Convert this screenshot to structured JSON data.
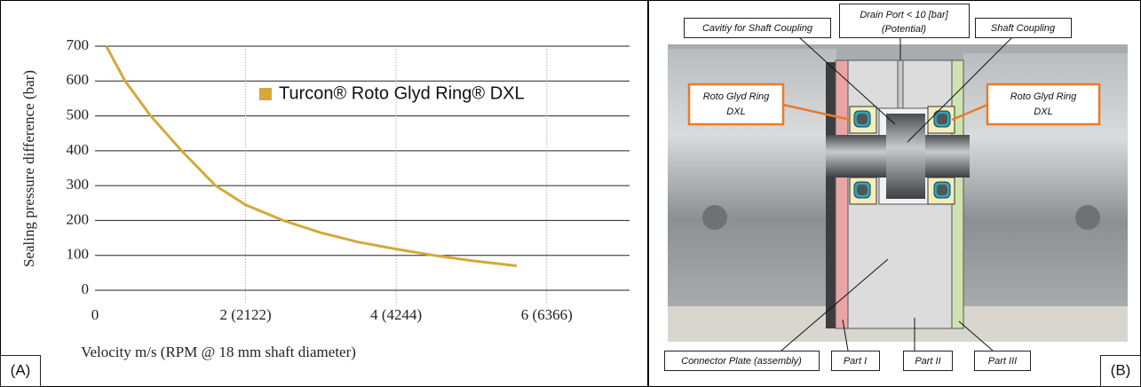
{
  "chart_data": {
    "type": "line",
    "y_label": "Sealing pressure difference (bar)",
    "x_label": "Velocity m/s (RPM @ 18 mm shaft diameter)",
    "x": [
      0.15,
      0.4,
      0.74,
      1.15,
      1.6,
      2.0,
      2.5,
      3.0,
      3.5,
      4.0,
      4.5,
      5.0,
      5.6
    ],
    "series": [
      {
        "name": "Turcon® Roto Glyd Ring® DXL",
        "color": "#d4a937",
        "values": [
          700,
          600,
          500,
          400,
          300,
          245,
          200,
          165,
          138,
          118,
          100,
          85,
          70
        ]
      }
    ],
    "xlim": [
      0,
      7.1
    ],
    "ylim": [
      0,
      700
    ],
    "xticks": [
      0,
      {
        "value": 2,
        "label": "2 (2122)"
      },
      {
        "value": 4,
        "label": "4 (4244)"
      },
      {
        "value": 6,
        "label": "6 (6366)"
      }
    ],
    "yticks": [
      0,
      100,
      200,
      300,
      400,
      500,
      600,
      700
    ],
    "grid": true,
    "panel_label": "(A)"
  },
  "diagram": {
    "panel_label": "(B)",
    "cavity_label": "Cavitiy for Shaft Coupling",
    "drain_label": "Drain Port < 10 [bar]",
    "drain_note": "(Potential)",
    "coupling_label": "Shaft Coupling",
    "seal_left": [
      "Roto Glyd Ring",
      "DXL"
    ],
    "seal_right": [
      "Roto Glyd Ring",
      "DXL"
    ],
    "connector_label": "Connector Plate (assembly)",
    "part1_label": "Part I",
    "part2_label": "Part II",
    "part3_label": "Part III"
  }
}
